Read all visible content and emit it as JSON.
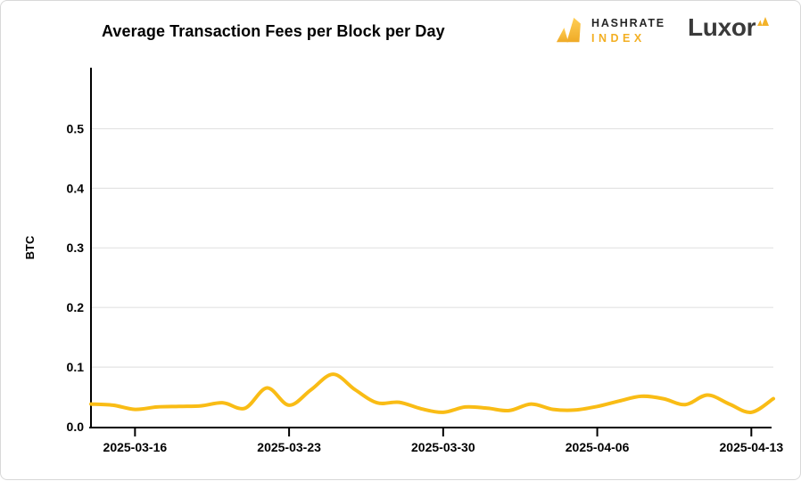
{
  "header": {
    "title": "Average Transaction Fees per Block per Day",
    "hashrate_logo": {
      "line1": "HASHRATE",
      "line2": "INDEX"
    },
    "luxor_logo": {
      "text": "Luxor"
    }
  },
  "colors": {
    "line": "#F9BC15",
    "logo_gold": "#F3AF22",
    "axis": "#000000",
    "grid": "#e3e3e3",
    "luxor_text": "#3A3A3A",
    "card_border": "#d8d8d8"
  },
  "chart_data": {
    "type": "line",
    "title": "Average Transaction Fees per Block per Day",
    "xlabel": "",
    "ylabel": "BTC",
    "x": [
      "2025-03-14",
      "2025-03-15",
      "2025-03-16",
      "2025-03-17",
      "2025-03-18",
      "2025-03-19",
      "2025-03-20",
      "2025-03-21",
      "2025-03-22",
      "2025-03-23",
      "2025-03-24",
      "2025-03-25",
      "2025-03-26",
      "2025-03-27",
      "2025-03-28",
      "2025-03-29",
      "2025-03-30",
      "2025-03-31",
      "2025-04-01",
      "2025-04-02",
      "2025-04-03",
      "2025-04-04",
      "2025-04-05",
      "2025-04-06",
      "2025-04-07",
      "2025-04-08",
      "2025-04-09",
      "2025-04-10",
      "2025-04-11",
      "2025-04-12",
      "2025-04-13",
      "2025-04-14"
    ],
    "values": [
      0.038,
      0.036,
      0.029,
      0.033,
      0.034,
      0.035,
      0.04,
      0.031,
      0.065,
      0.036,
      0.062,
      0.088,
      0.062,
      0.04,
      0.041,
      0.03,
      0.024,
      0.033,
      0.031,
      0.027,
      0.038,
      0.029,
      0.028,
      0.034,
      0.043,
      0.051,
      0.047,
      0.037,
      0.053,
      0.038,
      0.024,
      0.047
    ],
    "x_tick_labels": [
      "2025-03-16",
      "2025-03-23",
      "2025-03-30",
      "2025-04-06",
      "2025-04-13"
    ],
    "y_tick_labels": [
      "0.0",
      "0.1",
      "0.2",
      "0.3",
      "0.4",
      "0.5"
    ],
    "ylim": [
      0,
      0.6
    ],
    "grid": "horizontal-only",
    "legend": "none",
    "line_color": "#F9BC15",
    "smoothed": true
  }
}
